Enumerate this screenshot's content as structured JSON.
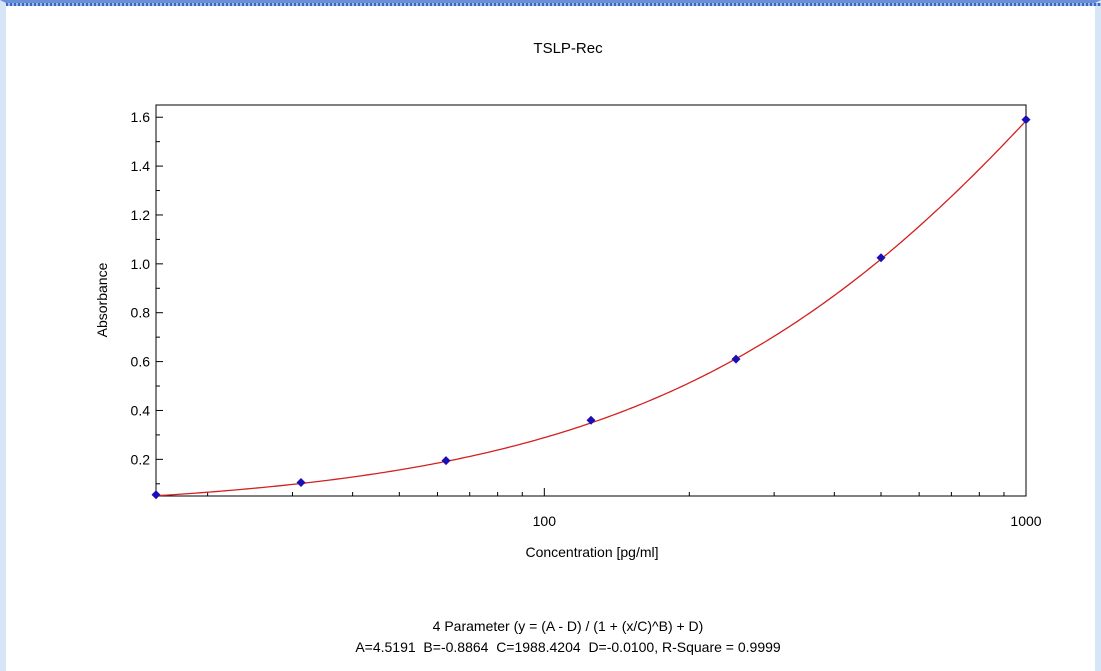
{
  "chart_data": {
    "type": "scatter",
    "title": "TSLP-Rec",
    "xlabel": "Concentration [pg/ml]",
    "ylabel": "Absorbance",
    "x_scale": "log",
    "xlim": [
      15.625,
      1000
    ],
    "ylim": [
      0.05,
      1.65
    ],
    "x_tick_labels": [
      {
        "value": 100,
        "label": "100"
      },
      {
        "value": 1000,
        "label": "1000"
      }
    ],
    "y_tick_labels": [
      {
        "value": 0.2,
        "label": "0.2"
      },
      {
        "value": 0.4,
        "label": "0.4"
      },
      {
        "value": 0.6,
        "label": "0.6"
      },
      {
        "value": 0.8,
        "label": "0.8"
      },
      {
        "value": 1.0,
        "label": "1.0"
      },
      {
        "value": 1.2,
        "label": "1.2"
      },
      {
        "value": 1.4,
        "label": "1.4"
      },
      {
        "value": 1.6,
        "label": "1.6"
      }
    ],
    "points": [
      {
        "x": 15.625,
        "y": 0.055
      },
      {
        "x": 31.25,
        "y": 0.105
      },
      {
        "x": 62.5,
        "y": 0.195
      },
      {
        "x": 125,
        "y": 0.36
      },
      {
        "x": 250,
        "y": 0.61
      },
      {
        "x": 500,
        "y": 1.025
      },
      {
        "x": 1000,
        "y": 1.59
      }
    ],
    "fit": {
      "model": "4 Parameter",
      "A": 4.5191,
      "B": -0.8864,
      "C": 1988.4204,
      "D": -0.01,
      "r_square": 0.9999
    },
    "colors": {
      "points": "#1a0fb5",
      "curve": "#d42020",
      "axes": "#000000"
    },
    "grid": false,
    "legend": "none"
  },
  "footer": {
    "formula_line": "4 Parameter (y = (A - D) / (1 + (x/C)^B) + D)",
    "params_line": "A=4.5191  B=-0.8864  C=1988.4204  D=-0.0100, R-Square = 0.9999"
  }
}
